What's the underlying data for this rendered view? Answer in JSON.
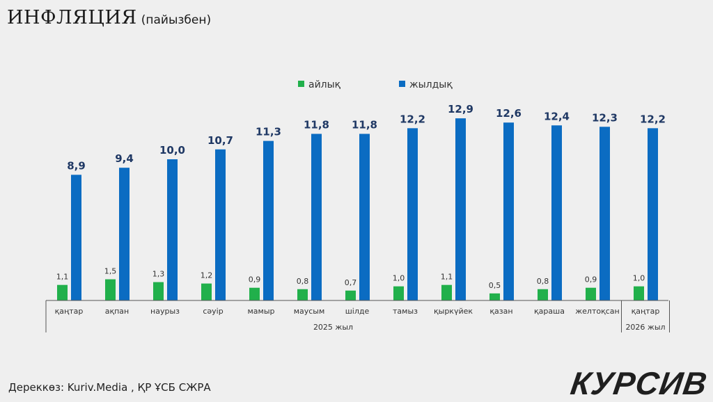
{
  "title": "ИНФЛЯЦИЯ",
  "subtitle": "(пайызбен)",
  "source": "Дереккөз: Kuriv.Media , ҚР ҰСБ СЖРА",
  "logo": "КУРСИВ",
  "colors": {
    "monthly": "#21b04b",
    "annual": "#0b6cc2",
    "annual_label": "#1f3864"
  },
  "chart_data": {
    "type": "bar",
    "title": "ИНФЛЯЦИЯ (пайызбен)",
    "categories": [
      "қаңтар",
      "ақпан",
      "наурыз",
      "сәуір",
      "мамыр",
      "маусым",
      "шілде",
      "тамыз",
      "қыркүйек",
      "қазан",
      "қараша",
      "желтоқсан",
      "қаңтар"
    ],
    "groups": [
      {
        "label": "2025 жыл",
        "count": 12
      },
      {
        "label": "2026 жыл",
        "count": 1
      }
    ],
    "series": [
      {
        "name": "айлық",
        "values": [
          1.1,
          1.5,
          1.3,
          1.2,
          0.9,
          0.8,
          0.7,
          1.0,
          1.1,
          0.5,
          0.8,
          0.9,
          1.0
        ],
        "labels": [
          "1,1",
          "1,5",
          "1,3",
          "1,2",
          "0,9",
          "0,8",
          "0,7",
          "1,0",
          "1,1",
          "0,5",
          "0,8",
          "0,9",
          "1,0"
        ]
      },
      {
        "name": "жылдық",
        "values": [
          8.9,
          9.4,
          10.0,
          10.7,
          11.3,
          11.8,
          11.8,
          12.2,
          12.9,
          12.6,
          12.4,
          12.3,
          12.2
        ],
        "labels": [
          "8,9",
          "9,4",
          "10,0",
          "10,7",
          "11,3",
          "11,8",
          "11,8",
          "12,2",
          "12,9",
          "12,6",
          "12,4",
          "12,3",
          "12,2"
        ]
      }
    ],
    "legend": "top-center",
    "ylim": [
      0,
      14
    ],
    "grid": false
  }
}
